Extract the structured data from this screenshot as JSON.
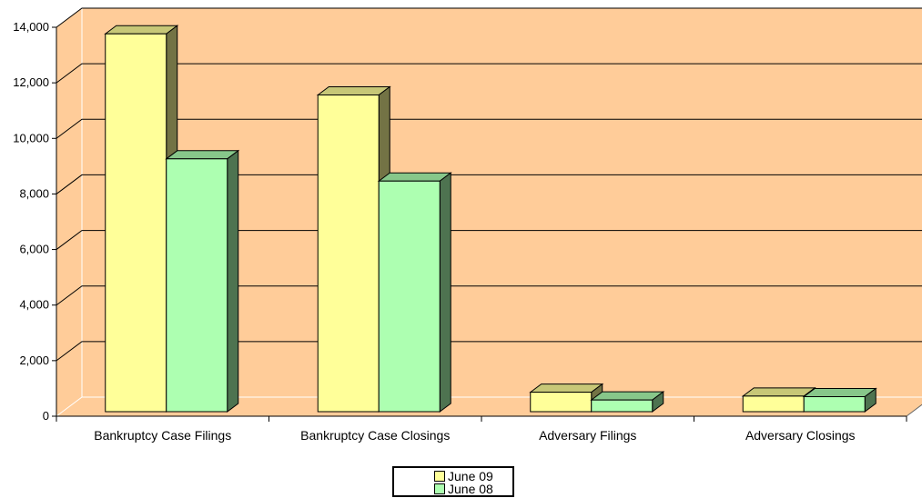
{
  "chart_data": {
    "type": "bar",
    "categories": [
      "Bankruptcy Case Filings",
      "Bankruptcy Case Closings",
      "Adversary Filings",
      "Adversary Closings"
    ],
    "series": [
      {
        "name": "June 09",
        "values": [
          13600,
          11400,
          700,
          560
        ],
        "color": "#FFFF99"
      },
      {
        "name": "June 08",
        "values": [
          9100,
          8300,
          420,
          540
        ],
        "color": "#ADFFB1"
      }
    ],
    "ylim": [
      0,
      14000
    ],
    "yticks": [
      "0",
      "2,000",
      "4,000",
      "6,000",
      "8,000",
      "10,000",
      "12,000",
      "14,000"
    ],
    "grid": true,
    "three_d": true,
    "plot_background": "#FFCC99",
    "legend_position": "bottom"
  }
}
